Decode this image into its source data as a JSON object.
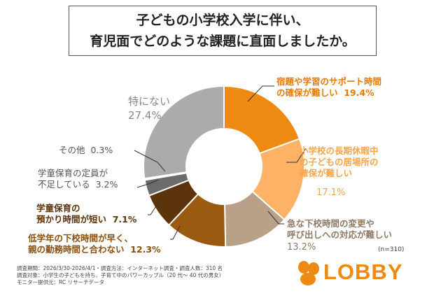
{
  "title": {
    "line1": "子どもの小学校入学に伴い、",
    "line2": "育児面でどのような課題に直面しましたか。"
  },
  "chart_data": {
    "type": "pie",
    "donut": true,
    "slices": [
      {
        "label": "宿題や学習のサポート時間の確保が難しい",
        "value": 19.4,
        "color": "#ee8a12"
      },
      {
        "label": "小学校の長期休暇中の子どもの居場所の確保が難しい",
        "value": 17.1,
        "color": "#fdb265"
      },
      {
        "label": "急な下校時間の変更や呼び出しへの対応が難しい",
        "value": 13.2,
        "color": "#b9a089"
      },
      {
        "label": "低学年の下校時間が早く、親の勤務時間と合わない",
        "value": 12.3,
        "color": "#9a5a0f"
      },
      {
        "label": "学童保育の預かり時間が短い",
        "value": 7.1,
        "color": "#5c340b"
      },
      {
        "label": "学童保育の定員が不足している",
        "value": 3.2,
        "color": "#6b6b6b"
      },
      {
        "label": "その他",
        "value": 0.3,
        "color": "#d9d9d9"
      },
      {
        "label": "特にない",
        "value": 27.4,
        "color": "#ababab"
      }
    ]
  },
  "labels": {
    "s1_line1": "宿題や学習のサポート時間",
    "s1_line2": "の確保が難しい",
    "s1_pct": "19.4%",
    "s2_line1": "小学校の長期休暇中",
    "s2_line2": "の子どもの居場所の",
    "s2_line3": "確保が難しい",
    "s2_pct": "17.1%",
    "s3_line1": "急な下校時間の変更や",
    "s3_line2": "呼び出しへの対応が難しい",
    "s3_pct": "13.2%",
    "s4_line1": "低学年の下校時間が早く、",
    "s4_line2": "親の勤務時間と合わない",
    "s4_pct": "12.3%",
    "s5_line1": "学童保育の",
    "s5_line2": "預かり時間が短い",
    "s5_pct": "7.1%",
    "s6_line1": "学童保育の定員が",
    "s6_line2": "不足している",
    "s6_pct": "3.2%",
    "s7_line1": "その他",
    "s7_pct": "0.3%",
    "s8_line1": "特にない",
    "s8_pct": "27.4%"
  },
  "n_note": "(n=310)",
  "footnotes": {
    "line1": "調査期間：2026/3/30-2026/4/1・調査方法：インターネット調査・調査人数：310 名",
    "line2": "調査対象：小学生の子どもを持ち、子育て中のパワーカップル（20 代〜 40 代の男女）",
    "line3": "モニター提供元：RC リサーチデータ"
  },
  "logo": {
    "text": "LOBBY",
    "color": "#ee8a12"
  }
}
